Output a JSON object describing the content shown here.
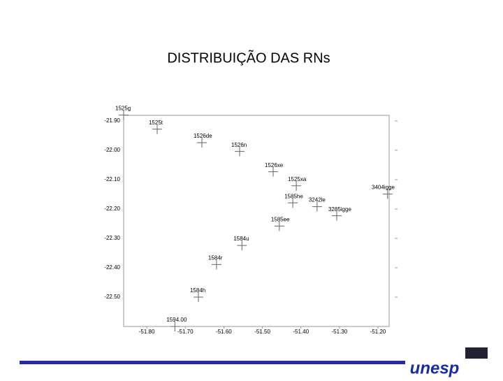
{
  "chart_data": {
    "type": "scatter",
    "title": "DISTRIBUIÇÃO DAS RNs",
    "point_labels": [
      "1525g",
      "1525t",
      "1526de",
      "1526n",
      "1526xe",
      "1525xa",
      "3404igge",
      "1585he",
      "3242le",
      "3285igge",
      "1585ee",
      "1584u",
      "1584r",
      "1584h",
      "1594.00"
    ],
    "x": [
      -51.86,
      -51.773,
      -51.657,
      -51.559,
      -51.472,
      -51.412,
      -51.175,
      -51.421,
      -51.358,
      -51.307,
      -51.456,
      -51.553,
      -51.619,
      -51.666,
      -51.727
    ],
    "values": [
      -21.88,
      -21.928,
      -21.974,
      -22.004,
      -22.073,
      -22.121,
      -22.149,
      -22.179,
      -22.192,
      -22.223,
      -22.258,
      -22.324,
      -22.389,
      -22.5,
      -22.6
    ],
    "color": "#666666",
    "xlim": [
      -51.86,
      -51.171
    ],
    "ylim": [
      -21.881,
      -22.6
    ],
    "xticks": [
      {
        "value": -51.8,
        "label": "-51.80"
      },
      {
        "value": -51.7,
        "label": "-51.70"
      },
      {
        "value": -51.6,
        "label": "-51.60"
      },
      {
        "value": -51.5,
        "label": "-51.50"
      },
      {
        "value": -51.4,
        "label": "-51.40"
      },
      {
        "value": -51.3,
        "label": "-51.30"
      },
      {
        "value": -51.2,
        "label": "-51.20"
      }
    ],
    "yticks": [
      {
        "value": -21.9,
        "label": "-21.90"
      },
      {
        "value": -22.0,
        "label": "-22.00"
      },
      {
        "value": -22.1,
        "label": "-22.10"
      },
      {
        "value": -22.2,
        "label": "-22.20"
      },
      {
        "value": -22.3,
        "label": "-22.30"
      },
      {
        "value": -22.4,
        "label": "-22.40"
      },
      {
        "value": -22.5,
        "label": "-22.50"
      }
    ]
  },
  "logo": "unesp"
}
